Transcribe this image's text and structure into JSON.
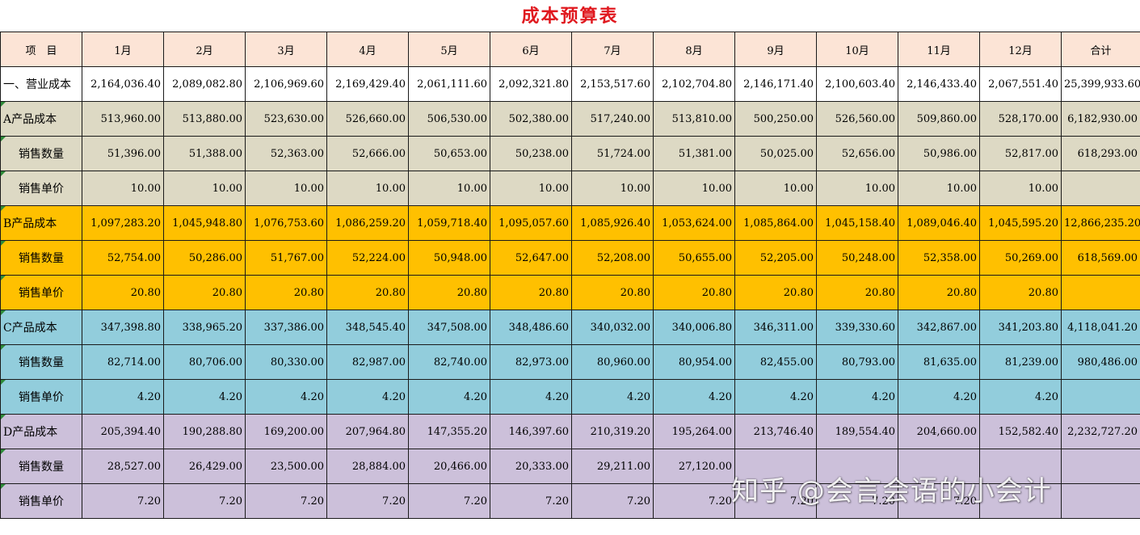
{
  "title": "成本预算表",
  "headers": [
    "项　目",
    "1月",
    "2月",
    "3月",
    "4月",
    "5月",
    "6月",
    "7月",
    "8月",
    "9月",
    "10月",
    "11月",
    "12月",
    "合计"
  ],
  "rows": [
    {
      "group": "total",
      "style": "main",
      "label": "一、营业成本",
      "values": [
        "2,164,036.40",
        "2,089,082.80",
        "2,106,969.60",
        "2,169,429.40",
        "2,061,111.60",
        "2,092,321.80",
        "2,153,517.60",
        "2,102,704.80",
        "2,146,171.40",
        "2,100,603.40",
        "2,146,433.40",
        "2,067,551.40",
        "25,399,933.60"
      ]
    },
    {
      "group": "a",
      "style": "main",
      "label": "A产品成本",
      "values": [
        "513,960.00",
        "513,880.00",
        "523,630.00",
        "526,660.00",
        "506,530.00",
        "502,380.00",
        "517,240.00",
        "513,810.00",
        "500,250.00",
        "526,560.00",
        "509,860.00",
        "528,170.00",
        "6,182,930.00"
      ]
    },
    {
      "group": "a",
      "style": "sub",
      "label": "销售数量",
      "values": [
        "51,396.00",
        "51,388.00",
        "52,363.00",
        "52,666.00",
        "50,653.00",
        "50,238.00",
        "51,724.00",
        "51,381.00",
        "50,025.00",
        "52,656.00",
        "50,986.00",
        "52,817.00",
        "618,293.00"
      ]
    },
    {
      "group": "a",
      "style": "sub",
      "label": "销售单价",
      "values": [
        "10.00",
        "10.00",
        "10.00",
        "10.00",
        "10.00",
        "10.00",
        "10.00",
        "10.00",
        "10.00",
        "10.00",
        "10.00",
        "10.00",
        ""
      ]
    },
    {
      "group": "b",
      "style": "main",
      "label": "B产品成本",
      "values": [
        "1,097,283.20",
        "1,045,948.80",
        "1,076,753.60",
        "1,086,259.20",
        "1,059,718.40",
        "1,095,057.60",
        "1,085,926.40",
        "1,053,624.00",
        "1,085,864.00",
        "1,045,158.40",
        "1,089,046.40",
        "1,045,595.20",
        "12,866,235.20"
      ]
    },
    {
      "group": "b",
      "style": "sub",
      "label": "销售数量",
      "values": [
        "52,754.00",
        "50,286.00",
        "51,767.00",
        "52,224.00",
        "50,948.00",
        "52,647.00",
        "52,208.00",
        "50,655.00",
        "52,205.00",
        "50,248.00",
        "52,358.00",
        "50,269.00",
        "618,569.00"
      ]
    },
    {
      "group": "b",
      "style": "sub",
      "label": "销售单价",
      "values": [
        "20.80",
        "20.80",
        "20.80",
        "20.80",
        "20.80",
        "20.80",
        "20.80",
        "20.80",
        "20.80",
        "20.80",
        "20.80",
        "20.80",
        ""
      ]
    },
    {
      "group": "c",
      "style": "main",
      "label": "C产品成本",
      "values": [
        "347,398.80",
        "338,965.20",
        "337,386.00",
        "348,545.40",
        "347,508.00",
        "348,486.60",
        "340,032.00",
        "340,006.80",
        "346,311.00",
        "339,330.60",
        "342,867.00",
        "341,203.80",
        "4,118,041.20"
      ]
    },
    {
      "group": "c",
      "style": "sub",
      "label": "销售数量",
      "values": [
        "82,714.00",
        "80,706.00",
        "80,330.00",
        "82,987.00",
        "82,740.00",
        "82,973.00",
        "80,960.00",
        "80,954.00",
        "82,455.00",
        "80,793.00",
        "81,635.00",
        "81,239.00",
        "980,486.00"
      ]
    },
    {
      "group": "c",
      "style": "sub",
      "label": "销售单价",
      "values": [
        "4.20",
        "4.20",
        "4.20",
        "4.20",
        "4.20",
        "4.20",
        "4.20",
        "4.20",
        "4.20",
        "4.20",
        "4.20",
        "4.20",
        ""
      ]
    },
    {
      "group": "d",
      "style": "main",
      "label": "D产品成本",
      "values": [
        "205,394.40",
        "190,288.80",
        "169,200.00",
        "207,964.80",
        "147,355.20",
        "146,397.60",
        "210,319.20",
        "195,264.00",
        "213,746.40",
        "189,554.40",
        "204,660.00",
        "152,582.40",
        "2,232,727.20"
      ]
    },
    {
      "group": "d",
      "style": "sub",
      "label": "销售数量",
      "values": [
        "28,527.00",
        "26,429.00",
        "23,500.00",
        "28,884.00",
        "20,466.00",
        "20,333.00",
        "29,211.00",
        "27,120.00",
        "",
        "",
        "",
        "",
        ""
      ]
    },
    {
      "group": "d",
      "style": "sub",
      "label": "销售单价",
      "values": [
        "7.20",
        "7.20",
        "7.20",
        "7.20",
        "7.20",
        "7.20",
        "7.20",
        "7.20",
        "7.20",
        "7.20",
        "7.20",
        "",
        ""
      ]
    }
  ],
  "watermark": "知乎 @会言会语的小会计"
}
